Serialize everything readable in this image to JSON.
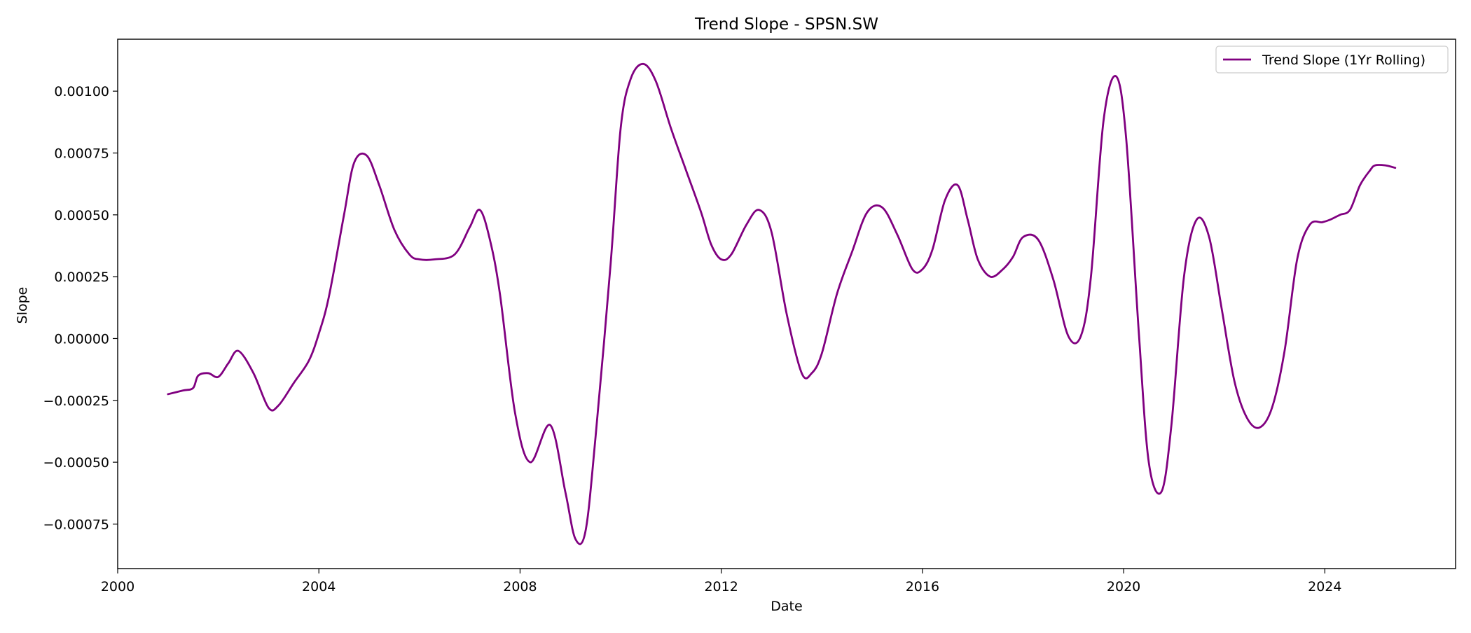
{
  "chart_data": {
    "type": "line",
    "title": "Trend Slope - SPSN.SW",
    "xlabel": "Date",
    "ylabel": "Slope",
    "xlim": [
      2000.0,
      2026.6
    ],
    "ylim": [
      -0.00093,
      0.00121
    ],
    "x_ticks": [
      {
        "value": 2000,
        "label": "2000"
      },
      {
        "value": 2004,
        "label": "2004"
      },
      {
        "value": 2008,
        "label": "2008"
      },
      {
        "value": 2012,
        "label": "2012"
      },
      {
        "value": 2016,
        "label": "2016"
      },
      {
        "value": 2020,
        "label": "2020"
      },
      {
        "value": 2024,
        "label": "2024"
      }
    ],
    "y_ticks": [
      {
        "value": 0.001,
        "label": "0.00100"
      },
      {
        "value": 0.00075,
        "label": "0.00075"
      },
      {
        "value": 0.0005,
        "label": "0.00050"
      },
      {
        "value": 0.00025,
        "label": "0.00025"
      },
      {
        "value": 0.0,
        "label": "0.00000"
      },
      {
        "value": -0.00025,
        "label": "−0.00025"
      },
      {
        "value": -0.0005,
        "label": "−0.00050"
      },
      {
        "value": -0.00075,
        "label": "−0.00075"
      }
    ],
    "grid": false,
    "legend_position": "top-right",
    "series": [
      {
        "name": "Trend Slope (1Yr Rolling)",
        "color": "#800080",
        "x": [
          2001.0,
          2001.3,
          2001.5,
          2001.6,
          2001.8,
          2002.0,
          2002.2,
          2002.4,
          2002.7,
          2003.0,
          2003.2,
          2003.5,
          2003.8,
          2004.0,
          2004.2,
          2004.5,
          2004.7,
          2004.95,
          2005.2,
          2005.5,
          2005.8,
          2006.0,
          2006.3,
          2006.7,
          2007.0,
          2007.2,
          2007.4,
          2007.6,
          2007.9,
          2008.2,
          2008.6,
          2008.9,
          2009.1,
          2009.3,
          2009.5,
          2009.8,
          2010.0,
          2010.2,
          2010.45,
          2010.7,
          2011.0,
          2011.3,
          2011.6,
          2011.8,
          2012.0,
          2012.2,
          2012.5,
          2012.75,
          2013.0,
          2013.3,
          2013.6,
          2013.8,
          2014.0,
          2014.3,
          2014.6,
          2014.9,
          2015.2,
          2015.5,
          2015.8,
          2016.0,
          2016.2,
          2016.45,
          2016.7,
          2016.9,
          2017.1,
          2017.35,
          2017.6,
          2017.8,
          2018.0,
          2018.3,
          2018.6,
          2018.9,
          2019.15,
          2019.35,
          2019.6,
          2019.85,
          2020.05,
          2020.3,
          2020.5,
          2020.75,
          2020.95,
          2021.2,
          2021.45,
          2021.7,
          2021.95,
          2022.2,
          2022.45,
          2022.7,
          2022.95,
          2023.2,
          2023.45,
          2023.7,
          2023.95,
          2024.1,
          2024.3,
          2024.5,
          2024.7,
          2024.9,
          2025.0,
          2025.2,
          2025.4
        ],
        "values": [
          -0.000225,
          -0.00021,
          -0.0002,
          -0.00015,
          -0.00014,
          -0.000155,
          -0.0001,
          -5e-05,
          -0.00014,
          -0.00028,
          -0.00027,
          -0.00018,
          -9e-05,
          2e-05,
          0.00017,
          0.0005,
          0.00071,
          0.00074,
          0.00062,
          0.00044,
          0.00034,
          0.00032,
          0.00032,
          0.00034,
          0.00045,
          0.00052,
          0.0004,
          0.00018,
          -0.0003,
          -0.0005,
          -0.00035,
          -0.00062,
          -0.00081,
          -0.00078,
          -0.0004,
          0.0003,
          0.00085,
          0.00105,
          0.00111,
          0.00104,
          0.00085,
          0.00068,
          0.00051,
          0.00038,
          0.00032,
          0.00034,
          0.00046,
          0.00052,
          0.00043,
          0.0001,
          -0.00014,
          -0.00014,
          -6e-05,
          0.00018,
          0.00035,
          0.00051,
          0.00053,
          0.00042,
          0.00028,
          0.00028,
          0.00036,
          0.00056,
          0.00062,
          0.00048,
          0.00032,
          0.00025,
          0.00028,
          0.00033,
          0.00041,
          0.0004,
          0.00024,
          1e-05,
          1e-05,
          0.00025,
          0.00088,
          0.00106,
          0.00081,
          3e-05,
          -0.0005,
          -0.00062,
          -0.00035,
          0.00025,
          0.00048,
          0.00041,
          0.00012,
          -0.00017,
          -0.00032,
          -0.00036,
          -0.00028,
          -5e-05,
          0.00032,
          0.00046,
          0.00047,
          0.00048,
          0.0005,
          0.00052,
          0.00062,
          0.00068,
          0.0007,
          0.0007,
          0.00069
        ]
      }
    ]
  }
}
